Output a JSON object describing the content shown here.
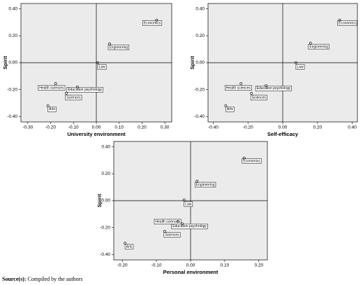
{
  "chart_data": [
    {
      "type": "scatter",
      "xlabel": "University environment",
      "ylabel": "Spirit",
      "labels": [
        "Economics",
        "Engineering",
        "Law",
        "Health sciences",
        "Education psychology",
        "Sciences",
        "Arts"
      ],
      "x": [
        0.264,
        0.058,
        0.006,
        -0.178,
        -0.083,
        -0.132,
        -0.212
      ],
      "y": [
        0.316,
        0.14,
        0.0,
        -0.155,
        -0.18,
        -0.228,
        -0.32
      ],
      "xlim": [
        -0.33,
        0.33
      ],
      "ylim": [
        -0.44,
        0.44
      ],
      "xticks": [
        {
          "value": -0.3,
          "label": "-0.30"
        },
        {
          "value": -0.2,
          "label": "-0.20"
        },
        {
          "value": -0.1,
          "label": "-0.10"
        },
        {
          "value": 0,
          "label": "0.00"
        },
        {
          "value": 0.1,
          "label": "0.10"
        },
        {
          "value": 0.2,
          "label": "0.20"
        },
        {
          "value": 0.3,
          "label": "0.30"
        }
      ],
      "yticks": [
        {
          "value": -0.4,
          "label": "-0.40"
        },
        {
          "value": -0.2,
          "label": "-0.20"
        },
        {
          "value": 0,
          "label": "0.00"
        },
        {
          "value": 0.2,
          "label": "0.20"
        },
        {
          "value": 0.4,
          "label": "0.40"
        }
      ],
      "reference_lines": {
        "x": 0,
        "y": 0
      }
    },
    {
      "type": "scatter",
      "xlabel": "Self-efficacy",
      "ylabel": "Spirit",
      "labels": [
        "Economics",
        "Engineering",
        "Law",
        "Health sciences",
        "Education psychology",
        "Sciences",
        "Arts"
      ],
      "x": [
        0.328,
        0.16,
        0.076,
        -0.24,
        -0.096,
        -0.18,
        -0.328
      ],
      "y": [
        0.316,
        0.145,
        0.0,
        -0.155,
        -0.17,
        -0.228,
        -0.32
      ],
      "xlim": [
        -0.43,
        0.43
      ],
      "ylim": [
        -0.44,
        0.44
      ],
      "xticks": [
        {
          "value": -0.4,
          "label": "-0.40"
        },
        {
          "value": -0.2,
          "label": "-0.20"
        },
        {
          "value": 0,
          "label": "0.00"
        },
        {
          "value": 0.2,
          "label": "0.20"
        },
        {
          "value": 0.4,
          "label": "0.40"
        }
      ],
      "yticks": [
        {
          "value": -0.4,
          "label": "-0.40"
        },
        {
          "value": -0.2,
          "label": "-0.20"
        },
        {
          "value": 0,
          "label": "0.00"
        },
        {
          "value": 0.2,
          "label": "0.20"
        },
        {
          "value": 0.4,
          "label": "0.40"
        }
      ],
      "reference_lines": {
        "x": 0,
        "y": 0
      }
    },
    {
      "type": "scatter",
      "xlabel": "Personal environment",
      "ylabel": "Spirit",
      "labels": [
        "Economics",
        "Engineering",
        "Law",
        "Health sciences",
        "Education psychology",
        "Sciences",
        "Arts"
      ],
      "x": [
        0.157,
        0.019,
        -0.019,
        -0.037,
        -0.025,
        -0.076,
        -0.192
      ],
      "y": [
        0.316,
        0.145,
        0.005,
        -0.155,
        -0.17,
        -0.228,
        -0.316
      ],
      "xlim": [
        -0.225,
        0.225
      ],
      "ylim": [
        -0.44,
        0.44
      ],
      "xticks": [
        {
          "value": -0.2,
          "label": "-0.20"
        },
        {
          "value": -0.1,
          "label": "-0.10"
        },
        {
          "value": 0,
          "label": "0.00"
        },
        {
          "value": 0.1,
          "label": "0.10"
        },
        {
          "value": 0.2,
          "label": "0.20"
        }
      ],
      "yticks": [
        {
          "value": -0.4,
          "label": "-0.40"
        },
        {
          "value": -0.2,
          "label": "-0.20"
        },
        {
          "value": 0,
          "label": "0.00"
        },
        {
          "value": 0.2,
          "label": "0.20"
        },
        {
          "value": 0.4,
          "label": "0.40"
        }
      ],
      "reference_lines": {
        "x": 0,
        "y": 0
      }
    }
  ],
  "source": {
    "label": "Source(s):",
    "text": "Compiled by the authors"
  }
}
